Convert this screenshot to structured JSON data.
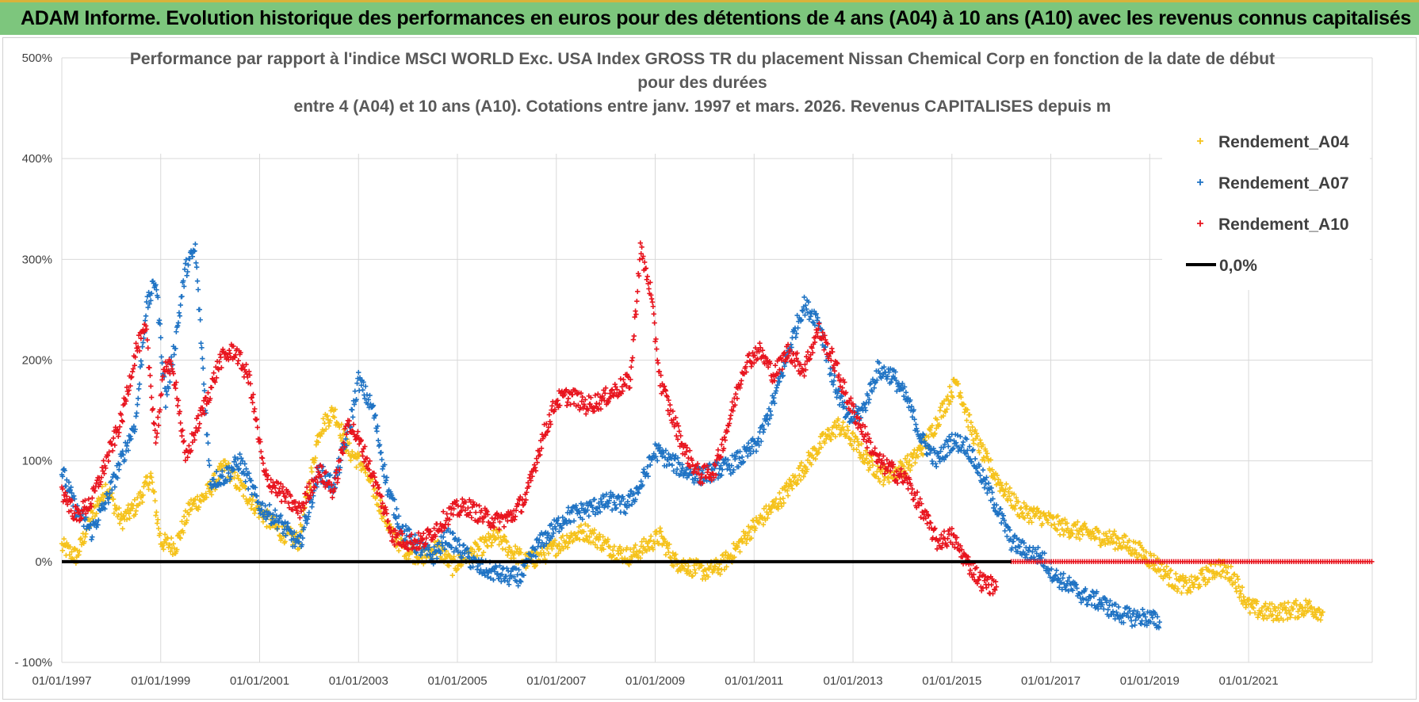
{
  "header": {
    "title": "ADAM Informe. Evolution historique des performances en euros pour des détentions de 4 ans (A04) à 10 ans (A10) avec les revenus connus capitalisés"
  },
  "chart_data": {
    "type": "scatter",
    "title_lines": [
      "Performance par rapport à l'indice MSCI WORLD Exc. USA Index GROSS TR  du placement Nissan Chemical Corp en fonction de la date de début",
      "pour des durées",
      "entre 4 (A04) et 10 ans (A10).  Cotations entre janv. 1997 et mars. 2026.  Revenus CAPITALISES depuis m"
    ],
    "xlabel": "",
    "ylabel": "",
    "xlim": [
      1997.0,
      2023.5
    ],
    "ylim": [
      -100,
      500
    ],
    "yticks": [
      -100,
      0,
      100,
      200,
      300,
      400,
      500
    ],
    "ytick_labels": [
      "- 100%",
      "0%",
      "100%",
      "200%",
      "300%",
      "400%",
      "500%"
    ],
    "xtick_years": [
      1997,
      1999,
      2001,
      2003,
      2005,
      2007,
      2009,
      2011,
      2013,
      2015,
      2017,
      2019,
      2021
    ],
    "xtick_labels": [
      "01/01/1997",
      "01/01/1999",
      "01/01/2001",
      "01/01/2003",
      "01/01/2005",
      "01/01/2007",
      "01/01/2009",
      "01/01/2011",
      "01/01/2013",
      "01/01/2015",
      "01/01/2017",
      "01/01/2019",
      "01/01/2021"
    ],
    "grid": true,
    "legend_position": "top-right",
    "series": [
      {
        "name": "Rendement_A04",
        "color": "#f5c21b",
        "marker": "+",
        "x": [
          1997.0,
          1997.3,
          1997.6,
          1997.9,
          1998.2,
          1998.5,
          1998.8,
          1999.0,
          1999.3,
          1999.6,
          1999.9,
          2000.3,
          2000.6,
          2001.0,
          2001.4,
          2001.8,
          2002.2,
          2002.5,
          2002.8,
          2003.1,
          2003.4,
          2003.7,
          2004.0,
          2004.3,
          2004.6,
          2004.9,
          2005.2,
          2005.5,
          2005.8,
          2006.1,
          2006.4,
          2006.7,
          2007.0,
          2007.3,
          2007.6,
          2007.9,
          2008.2,
          2008.5,
          2008.8,
          2009.1,
          2009.4,
          2009.7,
          2010.0,
          2010.3,
          2010.6,
          2010.9,
          2011.2,
          2011.5,
          2011.8,
          2012.1,
          2012.4,
          2012.7,
          2013.0,
          2013.3,
          2013.6,
          2013.9,
          2014.2,
          2014.5,
          2014.8,
          2015.1,
          2015.4,
          2015.7,
          2016.0,
          2016.4,
          2016.8,
          2017.2,
          2017.6,
          2018.0,
          2018.4,
          2018.8,
          2019.2,
          2019.5,
          2019.8,
          2020.1,
          2020.4,
          2020.7,
          2021.0,
          2021.3,
          2021.6,
          2021.9,
          2022.2,
          2022.5
        ],
        "values": [
          15,
          5,
          45,
          75,
          40,
          55,
          85,
          20,
          15,
          55,
          65,
          95,
          75,
          50,
          30,
          20,
          130,
          150,
          110,
          95,
          60,
          25,
          10,
          5,
          15,
          -5,
          5,
          15,
          25,
          10,
          0,
          5,
          15,
          25,
          30,
          20,
          10,
          5,
          15,
          25,
          0,
          -5,
          -10,
          -5,
          10,
          30,
          45,
          60,
          80,
          100,
          120,
          135,
          120,
          100,
          85,
          90,
          100,
          120,
          150,
          180,
          130,
          100,
          75,
          50,
          45,
          35,
          30,
          25,
          20,
          10,
          -5,
          -20,
          -25,
          -15,
          -5,
          -15,
          -45,
          -50,
          -50,
          -48,
          -45,
          -50
        ]
      },
      {
        "name": "Rendement_A07",
        "color": "#1f73c4",
        "marker": "+",
        "x": [
          1997.0,
          1997.3,
          1997.6,
          1997.9,
          1998.2,
          1998.5,
          1998.7,
          1998.9,
          1999.1,
          1999.3,
          1999.5,
          1999.7,
          2000.0,
          2000.3,
          2000.6,
          2001.0,
          2001.4,
          2001.8,
          2002.2,
          2002.5,
          2002.8,
          2003.0,
          2003.3,
          2003.6,
          2003.9,
          2004.2,
          2004.5,
          2004.8,
          2005.1,
          2005.4,
          2005.7,
          2006.0,
          2006.3,
          2006.6,
          2006.9,
          2007.2,
          2007.5,
          2007.8,
          2008.1,
          2008.4,
          2008.7,
          2009.0,
          2009.3,
          2009.6,
          2009.9,
          2010.2,
          2010.5,
          2010.8,
          2011.1,
          2011.4,
          2011.7,
          2012.0,
          2012.3,
          2012.6,
          2012.9,
          2013.2,
          2013.5,
          2013.8,
          2014.1,
          2014.4,
          2014.7,
          2015.0,
          2015.3,
          2015.6,
          2015.9,
          2016.2,
          2016.5,
          2016.8,
          2017.1,
          2017.4,
          2017.7,
          2018.0,
          2018.3,
          2018.6,
          2018.9,
          2019.2
        ],
        "values": [
          90,
          50,
          30,
          60,
          100,
          140,
          250,
          280,
          160,
          220,
          290,
          310,
          80,
          85,
          100,
          55,
          40,
          15,
          90,
          75,
          130,
          180,
          150,
          70,
          30,
          15,
          5,
          25,
          10,
          -5,
          -10,
          -15,
          -15,
          15,
          30,
          45,
          50,
          55,
          60,
          55,
          75,
          110,
          100,
          90,
          85,
          90,
          95,
          105,
          120,
          160,
          210,
          255,
          240,
          180,
          140,
          150,
          190,
          185,
          160,
          120,
          100,
          120,
          115,
          85,
          55,
          20,
          10,
          5,
          -15,
          -25,
          -35,
          -40,
          -50,
          -55,
          -55,
          -60
        ]
      },
      {
        "name": "Rendement_A10",
        "color": "#e8141e",
        "marker": "+",
        "x": [
          1997.0,
          1997.3,
          1997.6,
          1997.9,
          1998.2,
          1998.5,
          1998.7,
          1998.9,
          1999.1,
          1999.3,
          1999.5,
          1999.7,
          2000.0,
          2000.2,
          2000.5,
          2000.8,
          2001.1,
          2001.4,
          2001.8,
          2002.2,
          2002.5,
          2002.8,
          2003.1,
          2003.4,
          2003.7,
          2004.0,
          2004.3,
          2004.6,
          2004.9,
          2005.2,
          2005.5,
          2005.8,
          2006.1,
          2006.4,
          2006.7,
          2007.0,
          2007.3,
          2007.6,
          2007.9,
          2008.2,
          2008.5,
          2008.7,
          2008.9,
          2009.1,
          2009.3,
          2009.6,
          2009.9,
          2010.2,
          2010.5,
          2010.8,
          2011.1,
          2011.4,
          2011.7,
          2012.0,
          2012.3,
          2012.6,
          2012.9,
          2013.2,
          2013.5,
          2013.8,
          2014.1,
          2014.4,
          2014.7,
          2015.0,
          2015.3,
          2015.6,
          2015.9
        ],
        "values": [
          70,
          45,
          60,
          100,
          140,
          210,
          230,
          120,
          200,
          180,
          100,
          130,
          170,
          200,
          210,
          180,
          85,
          70,
          50,
          90,
          70,
          140,
          110,
          70,
          25,
          20,
          20,
          35,
          50,
          55,
          45,
          40,
          45,
          65,
          120,
          160,
          165,
          155,
          160,
          170,
          180,
          310,
          270,
          180,
          150,
          110,
          85,
          90,
          140,
          195,
          210,
          185,
          210,
          190,
          230,
          200,
          160,
          130,
          100,
          90,
          80,
          50,
          20,
          25,
          0,
          -20,
          -25
        ]
      }
    ],
    "a10_zero_band": {
      "x_start": 2016.2,
      "x_end": 2023.5,
      "value": 0
    },
    "reference_line": {
      "name": "0,0%",
      "value": 0,
      "color": "#000000"
    }
  }
}
